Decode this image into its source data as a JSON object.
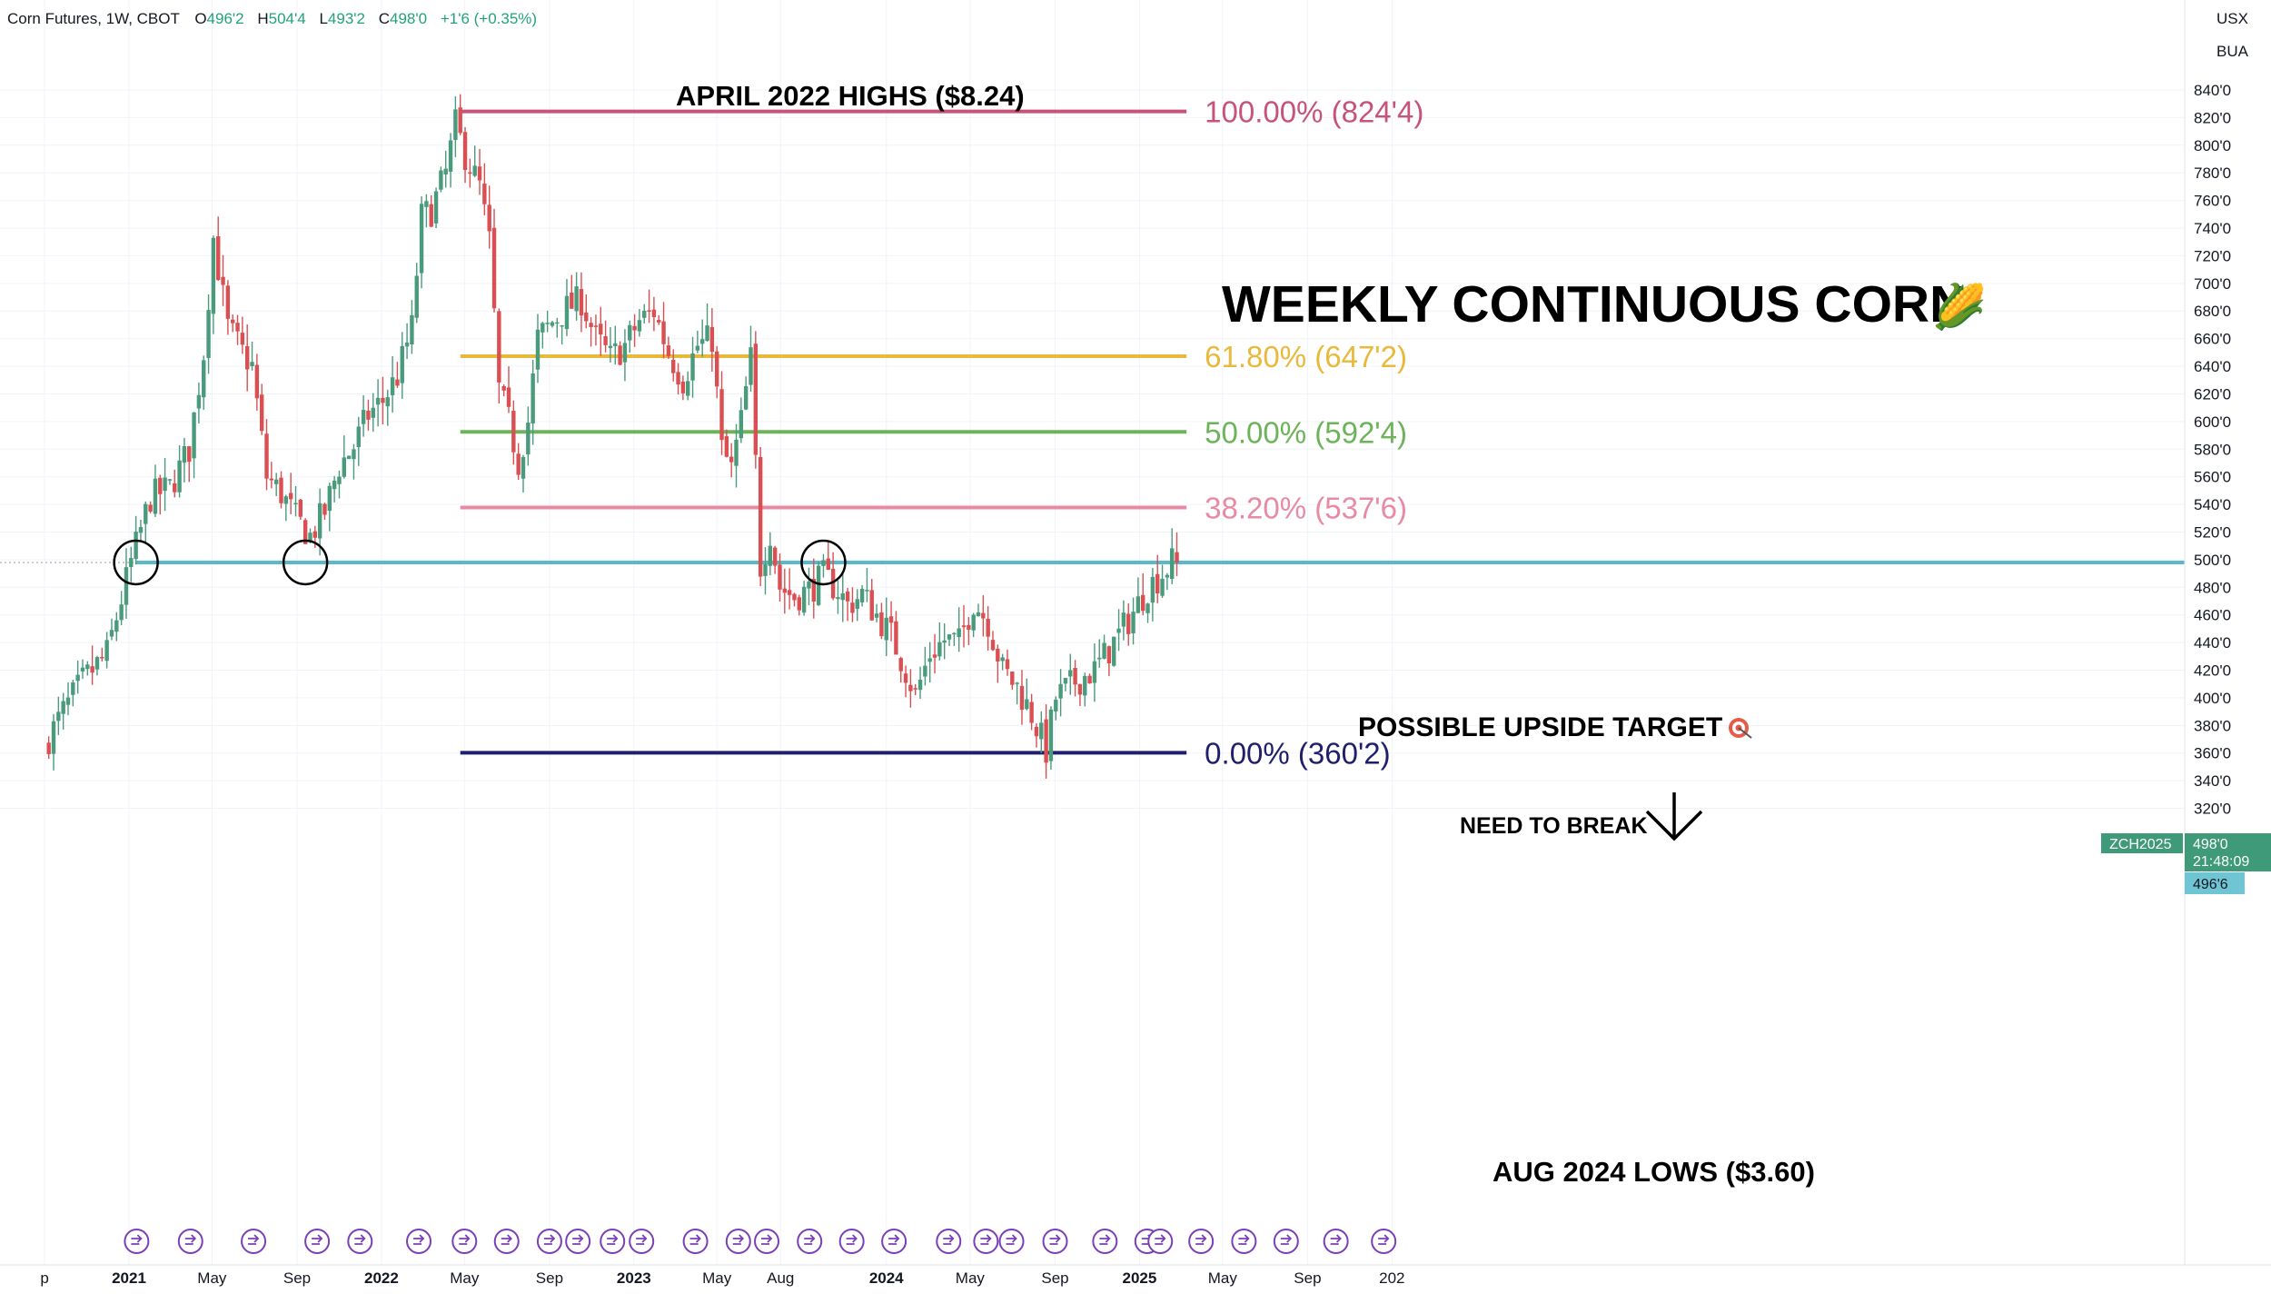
{
  "header": {
    "symbol_info": "Corn Futures, 1W, CBOT",
    "open_label": "O",
    "open": "496'2",
    "high_label": "H",
    "high": "504'4",
    "low_label": "L",
    "low": "493'2",
    "close_label": "C",
    "close": "498'0",
    "change": "+1'6 (+0.35%)"
  },
  "currency": {
    "unit": "USX",
    "sub": "BUA"
  },
  "price_tag": {
    "symbol": "ZCH2025",
    "price": "498'0",
    "countdown": "21:48:09",
    "bid": "496'6"
  },
  "colors": {
    "up": "#4a9a7c",
    "down": "#d94f52",
    "level_line": "#5ab8c8",
    "fib100": "#c7527a",
    "fib618": "#e8b93a",
    "fib50": "#6cb35a",
    "fib382": "#e78aa4",
    "fib0": "#1f1f6e"
  },
  "chart_data": {
    "type": "candlestick",
    "title": "WEEKLY CONTINUOUS CORN",
    "title_emoji": "🌽",
    "y_ticks": [
      "840'0",
      "820'0",
      "800'0",
      "780'0",
      "760'0",
      "740'0",
      "720'0",
      "700'0",
      "680'0",
      "660'0",
      "640'0",
      "620'0",
      "600'0",
      "580'0",
      "560'0",
      "540'0",
      "520'0",
      "500'0",
      "480'0",
      "460'0",
      "440'0",
      "420'0",
      "400'0",
      "380'0",
      "360'0",
      "340'0",
      "320'0"
    ],
    "ylim": [
      315,
      850
    ],
    "x_ticks": [
      {
        "label": "p",
        "date": "2020-09-01"
      },
      {
        "label": "2021",
        "date": "2021-01-01",
        "bold": true
      },
      {
        "label": "May",
        "date": "2021-05-01"
      },
      {
        "label": "Sep",
        "date": "2021-09-01"
      },
      {
        "label": "2022",
        "date": "2022-01-01",
        "bold": true
      },
      {
        "label": "May",
        "date": "2022-05-01"
      },
      {
        "label": "Sep",
        "date": "2022-09-01"
      },
      {
        "label": "2023",
        "date": "2023-01-01",
        "bold": true
      },
      {
        "label": "May",
        "date": "2023-05-01"
      },
      {
        "label": "Aug",
        "date": "2023-08-01"
      },
      {
        "label": "2024",
        "date": "2024-01-01",
        "bold": true
      },
      {
        "label": "May",
        "date": "2024-05-01"
      },
      {
        "label": "Sep",
        "date": "2024-09-01"
      },
      {
        "label": "2025",
        "date": "2025-01-01",
        "bold": true
      },
      {
        "label": "May",
        "date": "2025-05-01"
      },
      {
        "label": "Sep",
        "date": "2025-09-01"
      },
      {
        "label": "202",
        "date": "2026-01-01"
      }
    ],
    "path": [
      [
        "2020-09-07",
        365
      ],
      [
        "2020-10-05",
        390
      ],
      [
        "2020-11-02",
        412
      ],
      [
        "2020-12-07",
        432
      ],
      [
        "2021-01-11",
        498
      ],
      [
        "2021-02-08",
        545
      ],
      [
        "2021-03-08",
        552
      ],
      [
        "2021-04-05",
        580
      ],
      [
        "2021-04-26",
        650
      ],
      [
        "2021-05-10",
        733
      ],
      [
        "2021-05-31",
        668
      ],
      [
        "2021-06-21",
        650
      ],
      [
        "2021-07-05",
        640
      ],
      [
        "2021-07-26",
        560
      ],
      [
        "2021-08-16",
        548
      ],
      [
        "2021-09-06",
        530
      ],
      [
        "2021-09-27",
        517
      ],
      [
        "2021-10-18",
        535
      ],
      [
        "2021-11-08",
        568
      ],
      [
        "2021-11-29",
        582
      ],
      [
        "2021-12-20",
        605
      ],
      [
        "2022-01-10",
        615
      ],
      [
        "2022-01-31",
        633
      ],
      [
        "2022-02-21",
        668
      ],
      [
        "2022-03-07",
        748
      ],
      [
        "2022-03-21",
        753
      ],
      [
        "2022-04-11",
        780
      ],
      [
        "2022-04-25",
        815
      ],
      [
        "2022-05-09",
        793
      ],
      [
        "2022-05-30",
        770
      ],
      [
        "2022-06-13",
        730
      ],
      [
        "2022-06-27",
        623
      ],
      [
        "2022-07-11",
        600
      ],
      [
        "2022-07-25",
        570
      ],
      [
        "2022-08-08",
        600
      ],
      [
        "2022-08-22",
        660
      ],
      [
        "2022-09-12",
        672
      ],
      [
        "2022-10-03",
        682
      ],
      [
        "2022-10-24",
        688
      ],
      [
        "2022-11-14",
        660
      ],
      [
        "2022-12-05",
        646
      ],
      [
        "2022-12-26",
        655
      ],
      [
        "2023-01-16",
        673
      ],
      [
        "2023-02-06",
        680
      ],
      [
        "2023-02-27",
        650
      ],
      [
        "2023-03-20",
        630
      ],
      [
        "2023-04-10",
        655
      ],
      [
        "2023-05-01",
        660
      ],
      [
        "2023-05-15",
        580
      ],
      [
        "2023-05-29",
        565
      ],
      [
        "2023-06-12",
        600
      ],
      [
        "2023-06-26",
        645
      ],
      [
        "2023-07-10",
        495
      ],
      [
        "2023-07-24",
        520
      ],
      [
        "2023-08-07",
        480
      ],
      [
        "2023-08-28",
        473
      ],
      [
        "2023-09-18",
        478
      ],
      [
        "2023-10-09",
        488
      ],
      [
        "2023-10-30",
        478
      ],
      [
        "2023-11-13",
        467
      ],
      [
        "2023-12-04",
        475
      ],
      [
        "2023-12-25",
        460
      ],
      [
        "2024-01-15",
        445
      ],
      [
        "2024-02-05",
        420
      ],
      [
        "2024-02-19",
        402
      ],
      [
        "2024-03-11",
        432
      ],
      [
        "2024-04-01",
        442
      ],
      [
        "2024-04-22",
        440
      ],
      [
        "2024-05-13",
        470
      ],
      [
        "2024-06-03",
        455
      ],
      [
        "2024-06-24",
        420
      ],
      [
        "2024-07-15",
        408
      ],
      [
        "2024-08-05",
        388
      ],
      [
        "2024-08-26",
        362
      ],
      [
        "2024-09-09",
        400
      ],
      [
        "2024-10-07",
        412
      ],
      [
        "2024-11-04",
        420
      ],
      [
        "2024-12-02",
        440
      ],
      [
        "2024-12-30",
        462
      ],
      [
        "2025-01-20",
        480
      ],
      [
        "2025-02-10",
        490
      ],
      [
        "2025-02-24",
        498
      ]
    ],
    "levels": [
      {
        "label": "100.00% (824'4)",
        "value": 824.5,
        "color": "#c7527a"
      },
      {
        "label": "61.80% (647'2)",
        "value": 647.25,
        "color": "#e8b93a"
      },
      {
        "label": "50.00% (592'4)",
        "value": 592.5,
        "color": "#6cb35a"
      },
      {
        "label": "38.20% (537'6)",
        "value": 537.75,
        "color": "#e78aa4"
      },
      {
        "label": "0.00% (360'2)",
        "value": 360.25,
        "color": "#1f1f6e"
      }
    ],
    "level_start_date": "2022-04-25",
    "level_end_date": "2025-03-10",
    "horizontal_level": 498,
    "annotations": {
      "april_highs": "APRIL 2022 HIGHS ($8.24)",
      "aug_lows": "AUG 2024 LOWS ($3.60)",
      "upside_target": "POSSIBLE UPSIDE TARGET",
      "need_to_break": "NEED TO BREAK"
    },
    "circled_dates": [
      "2021-01-11",
      "2021-09-13",
      "2023-10-02"
    ],
    "event_markers": [
      "2021-01-12",
      "2021-03-31",
      "2021-06-30",
      "2021-09-30",
      "2021-12-01",
      "2022-02-24",
      "2022-05-01",
      "2022-07-01",
      "2022-09-01",
      "2022-10-12",
      "2022-12-01",
      "2023-01-12",
      "2023-03-31",
      "2023-06-01",
      "2023-07-12",
      "2023-09-12",
      "2023-11-12",
      "2024-01-12",
      "2024-03-31",
      "2024-05-24",
      "2024-06-30",
      "2024-09-01",
      "2024-11-12",
      "2025-01-12",
      "2025-01-31",
      "2025-03-31",
      "2025-06-01",
      "2025-08-01",
      "2025-10-12",
      "2025-12-20"
    ],
    "grid": true,
    "legend": "none"
  }
}
